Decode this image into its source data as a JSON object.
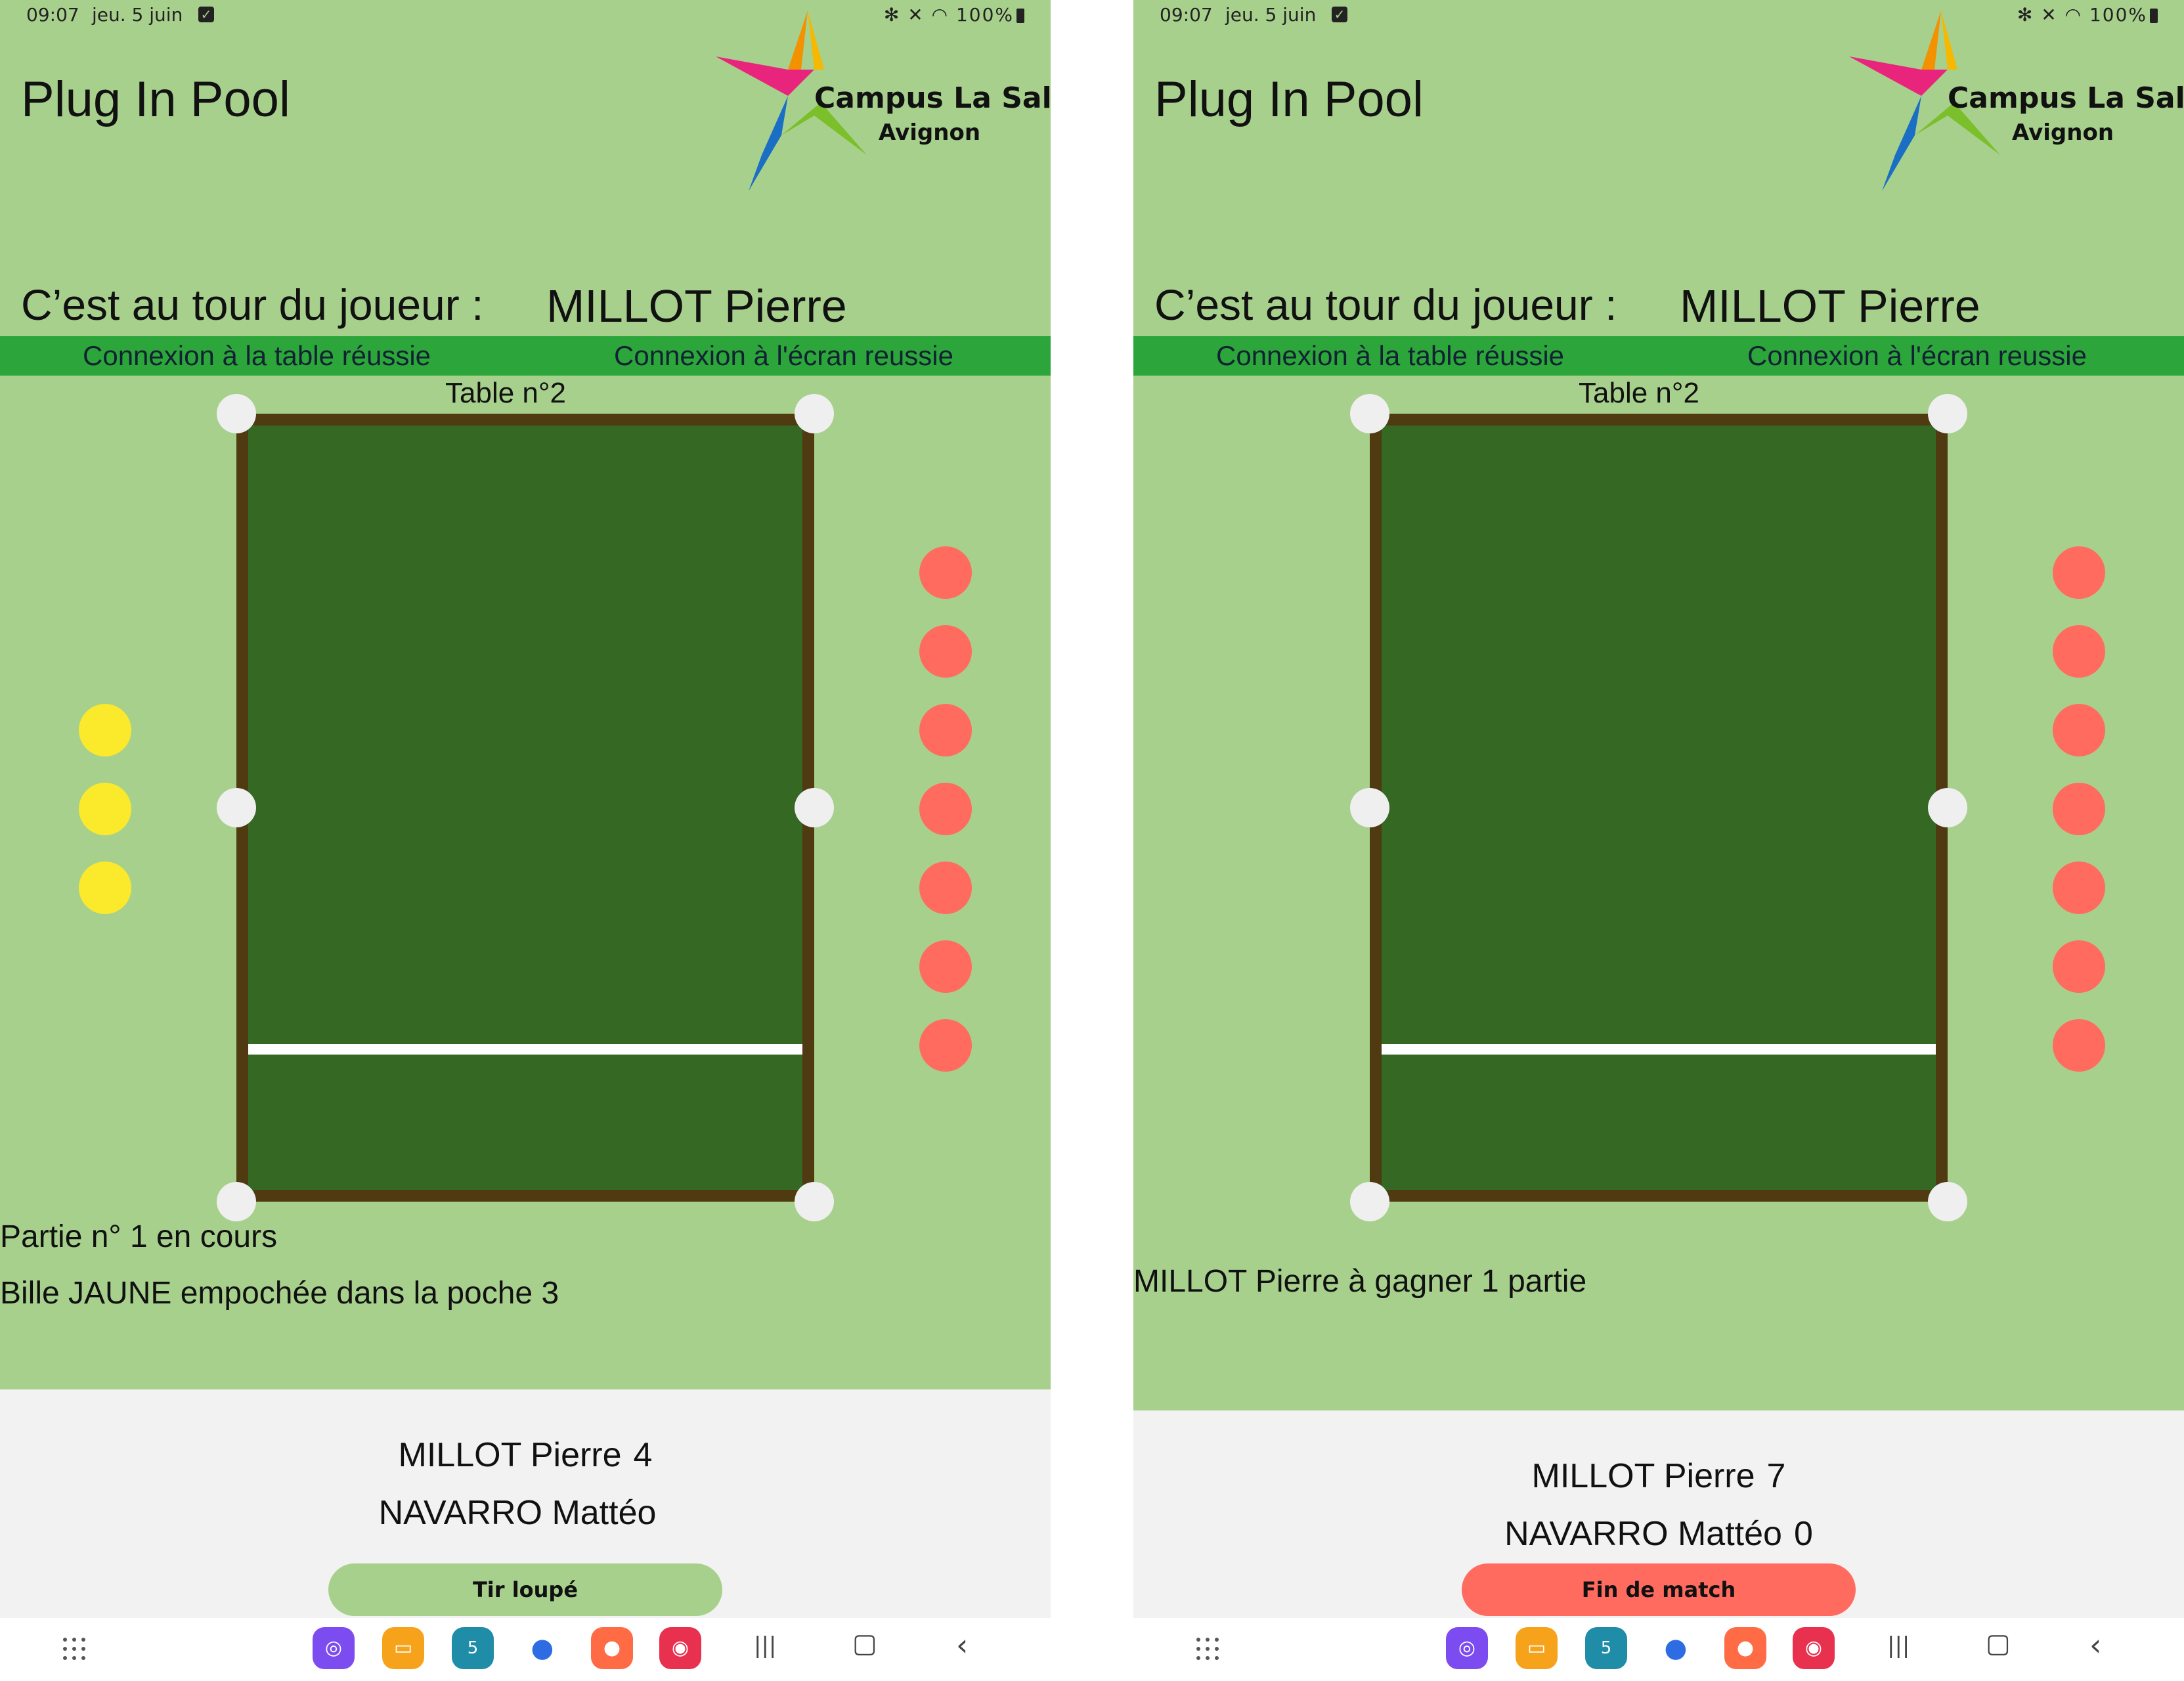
{
  "status_bar": {
    "time": "09:07",
    "date": "jeu. 5 juin",
    "battery": "100%",
    "icons": "✻ ✕ ◠"
  },
  "app_title": "Plug In Pool",
  "logo": {
    "line1": "Campus La Salle",
    "line2": "Avignon"
  },
  "turn": {
    "label": "C’est au tour du joueur :",
    "player": "MILLOT Pierre"
  },
  "connection": {
    "table": "Connexion à la table réussie",
    "screen": "Connexion à l'écran reussie"
  },
  "table_label": "Table n°2",
  "colors": {
    "background": "#a8d08d",
    "connection_bar": "#2ca63a",
    "felt": "#356823",
    "rail": "#4f3a12",
    "yellow_ball": "#fbe92c",
    "red_ball": "#ff6b5e",
    "score_bg": "#f2f2f2",
    "button_green": "#a8d08d",
    "button_red": "#ff6b5e"
  },
  "screens": [
    {
      "yellow_balls_remaining": 3,
      "red_balls_remaining": 7,
      "messages": [
        "Partie n° 1 en cours",
        "Bille JAUNE empochée dans la poche 3"
      ],
      "players": [
        {
          "name": "MILLOT Pierre",
          "score": "4"
        },
        {
          "name": "NAVARRO Mattéo",
          "score": ""
        }
      ],
      "button": "Tir loupé"
    },
    {
      "yellow_balls_remaining": 0,
      "red_balls_remaining": 7,
      "messages": [
        "MILLOT Pierre à gagner 1 partie"
      ],
      "players": [
        {
          "name": "MILLOT Pierre",
          "score": "7"
        },
        {
          "name": "NAVARRO Mattéo",
          "score": "0"
        }
      ],
      "button": "Fin de match"
    }
  ],
  "nav": {
    "dock_icons": [
      "internet-icon",
      "files-icon",
      "calendar-icon",
      "messages-icon",
      "contacts-icon",
      "camera-icon"
    ],
    "calendar_day": "5",
    "recents": "|||",
    "home": "▢",
    "back": "‹"
  }
}
